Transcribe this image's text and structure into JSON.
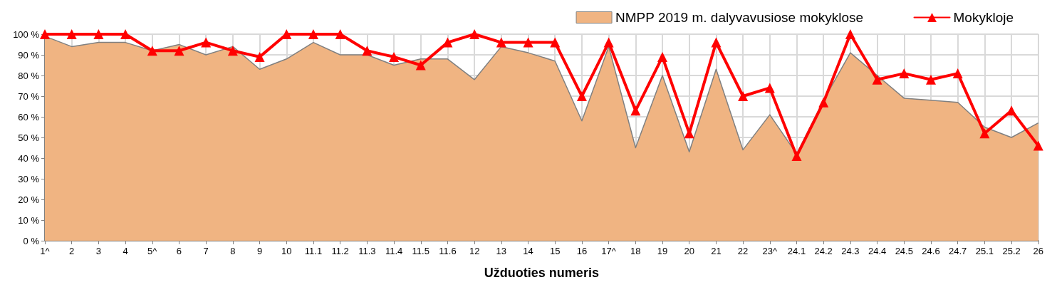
{
  "chart_data": {
    "type": "area",
    "xlabel": "Užduoties numeris",
    "categories": [
      "1^",
      "2",
      "3",
      "4",
      "5^",
      "6",
      "7",
      "8",
      "9",
      "10",
      "11.1",
      "11.2",
      "11.3",
      "11.4",
      "11.5",
      "11.6",
      "12",
      "13",
      "14",
      "15",
      "16",
      "17^",
      "18",
      "19",
      "20",
      "21",
      "22",
      "23^",
      "24.1",
      "24.2",
      "24.3",
      "24.4",
      "24.5",
      "24.6",
      "24.7",
      "25.1",
      "25.2",
      "26"
    ],
    "series": [
      {
        "name": "NMPP 2019 m. dalyvavusiose mokyklose",
        "color": "#f0b482",
        "values": [
          99,
          94,
          96,
          96,
          92,
          95,
          90,
          94,
          83,
          88,
          96,
          90,
          90,
          85,
          88,
          88,
          78,
          94,
          91,
          87,
          58,
          94,
          45,
          80,
          43,
          83,
          44,
          61,
          42,
          68,
          91,
          80,
          69,
          68,
          67,
          55,
          50,
          57
        ]
      },
      {
        "name": "Mokykloje",
        "type": "line",
        "color": "#ff0000",
        "marker": "triangle",
        "values": [
          100,
          100,
          100,
          100,
          92,
          92,
          96,
          92,
          89,
          100,
          100,
          100,
          92,
          89,
          85,
          96,
          100,
          96,
          96,
          96,
          70,
          96,
          63,
          89,
          52,
          96,
          70,
          74,
          41,
          67,
          100,
          78,
          81,
          78,
          81,
          52,
          63,
          46
        ]
      }
    ],
    "ylim": [
      0,
      100
    ],
    "yticks": [
      {
        "value": 0,
        "label": "0 %"
      },
      {
        "value": 10,
        "label": "10 %"
      },
      {
        "value": 20,
        "label": "20 %"
      },
      {
        "value": 30,
        "label": "30 %"
      },
      {
        "value": 40,
        "label": "40 %"
      },
      {
        "value": 50,
        "label": "50 %"
      },
      {
        "value": 60,
        "label": "60 %"
      },
      {
        "value": 70,
        "label": "70 %"
      },
      {
        "value": 80,
        "label": "80 %"
      },
      {
        "value": 90,
        "label": "90 %"
      },
      {
        "value": 100,
        "label": "100 %"
      }
    ],
    "grid": true,
    "legend": "top right"
  }
}
